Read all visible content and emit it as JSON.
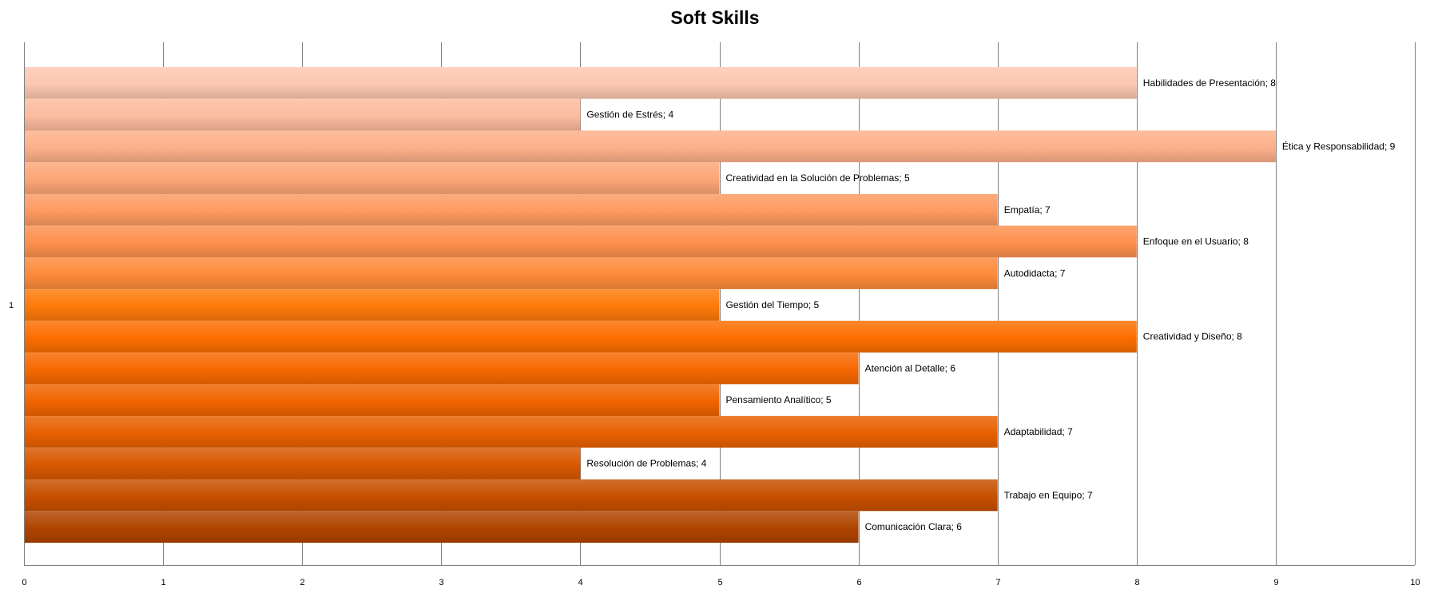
{
  "chart_data": {
    "type": "bar",
    "orientation": "horizontal",
    "title": "Soft Skills",
    "xlabel": "",
    "ylabel": "",
    "category_axis_label": "1",
    "xlim": [
      0,
      10
    ],
    "x_ticks": [
      0,
      1,
      2,
      3,
      4,
      5,
      6,
      7,
      8,
      9,
      10
    ],
    "grid": true,
    "legend": "none",
    "data_label_separator": "; ",
    "series": [
      {
        "label": "Comunicación Clara",
        "value": 6
      },
      {
        "label": "Trabajo en Equipo",
        "value": 7
      },
      {
        "label": "Resolución de Problemas",
        "value": 4
      },
      {
        "label": "Adaptabilidad",
        "value": 7
      },
      {
        "label": "Pensamiento Analítico",
        "value": 5
      },
      {
        "label": "Atención al Detalle",
        "value": 6
      },
      {
        "label": "Creatividad y Diseño",
        "value": 8
      },
      {
        "label": "Gestión del Tiempo",
        "value": 5
      },
      {
        "label": "Autodidacta",
        "value": 7
      },
      {
        "label": "Enfoque en el Usuario",
        "value": 8
      },
      {
        "label": "Empatía",
        "value": 7
      },
      {
        "label": "Creatividad en la Solución de Problemas",
        "value": 5
      },
      {
        "label": "Ética y Responsabilidad",
        "value": 9
      },
      {
        "label": "Gestión de Estrés",
        "value": 4
      },
      {
        "label": "Habilidades de Presentación",
        "value": 8
      }
    ],
    "colors": {
      "gridline": "#808080",
      "series_base": [
        "#b04400",
        "#c84f00",
        "#d85800",
        "#e86000",
        "#f06400",
        "#f66800",
        "#fb6e00",
        "#fd7a0a",
        "#fd8a3a",
        "#fd904e",
        "#fd9a60",
        "#fca676",
        "#fcb08a",
        "#fcbb9e",
        "#fcc7b0"
      ]
    }
  }
}
